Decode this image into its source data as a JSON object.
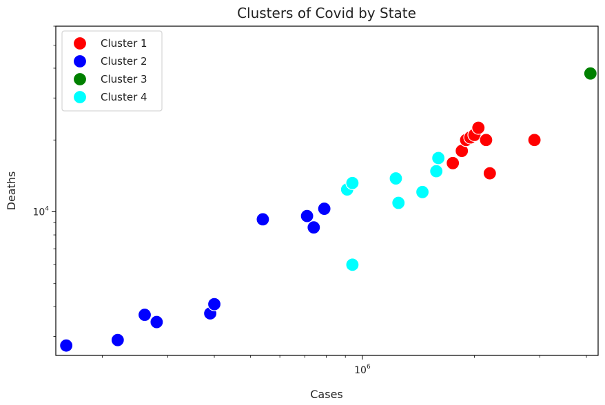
{
  "chart_data": {
    "type": "scatter",
    "title": "Clusters of Covid by State",
    "xlabel": "Cases",
    "ylabel": "Deaths",
    "x_scale": "log",
    "y_scale": "log",
    "xlim": [
      150000,
      4300000
    ],
    "ylim": [
      2500,
      60000
    ],
    "x_ticks": [
      {
        "value": 1000000,
        "label_base": "10",
        "label_exp": "6"
      }
    ],
    "y_ticks": [
      {
        "value": 10000,
        "label_base": "10",
        "label_exp": "4"
      }
    ],
    "grid": false,
    "legend_position": "top-left",
    "series": [
      {
        "name": "Cluster 1",
        "color": "#ff0000",
        "points": [
          [
            1850000,
            18000
          ],
          [
            1900000,
            20000
          ],
          [
            1950000,
            20500
          ],
          [
            2000000,
            21000
          ],
          [
            2050000,
            22500
          ],
          [
            2150000,
            20000
          ],
          [
            1750000,
            16000
          ],
          [
            2200000,
            14500
          ],
          [
            2900000,
            20000
          ]
        ]
      },
      {
        "name": "Cluster 2",
        "color": "#0000ff",
        "points": [
          [
            160000,
            2750
          ],
          [
            220000,
            2900
          ],
          [
            260000,
            3700
          ],
          [
            280000,
            3450
          ],
          [
            390000,
            3750
          ],
          [
            400000,
            4100
          ],
          [
            540000,
            9300
          ],
          [
            710000,
            9600
          ],
          [
            740000,
            8600
          ],
          [
            790000,
            10300
          ]
        ]
      },
      {
        "name": "Cluster 3",
        "color": "#008000",
        "points": [
          [
            4100000,
            38000
          ]
        ]
      },
      {
        "name": "Cluster 4",
        "color": "#00ffff",
        "points": [
          [
            910000,
            12400
          ],
          [
            940000,
            13200
          ],
          [
            1230000,
            13800
          ],
          [
            1250000,
            10900
          ],
          [
            1450000,
            12100
          ],
          [
            1580000,
            14800
          ],
          [
            1600000,
            16800
          ],
          [
            940000,
            6000
          ]
        ]
      }
    ]
  }
}
